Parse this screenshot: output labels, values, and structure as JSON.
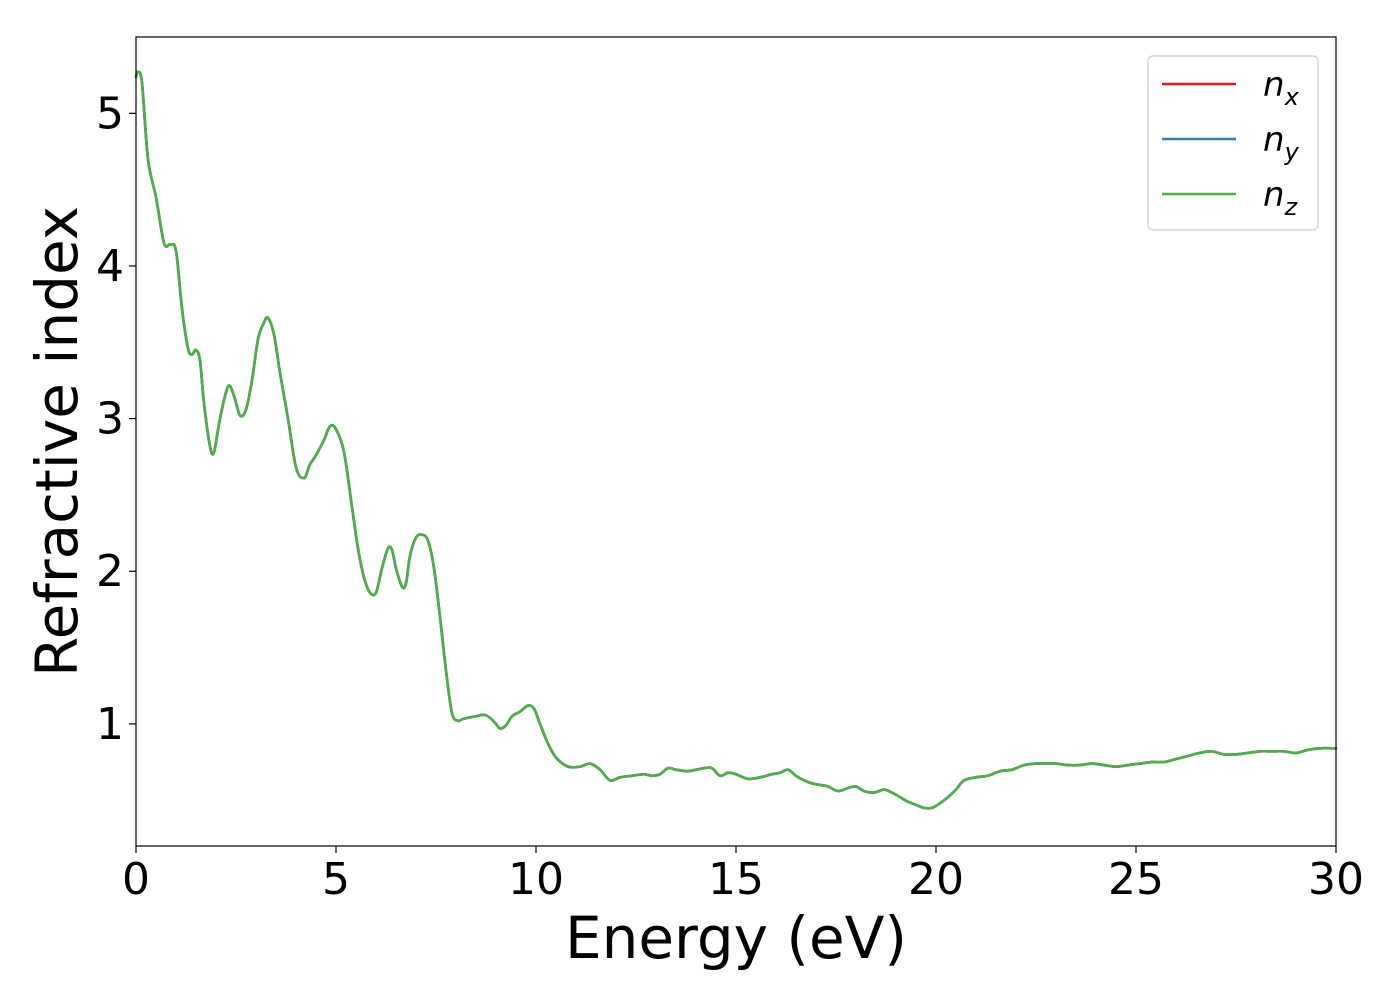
{
  "chart_data": {
    "type": "line",
    "title": "",
    "xlabel": "Energy (eV)",
    "ylabel": "Refractive index",
    "xlim": [
      0,
      30
    ],
    "ylim": [
      0.2,
      5.5
    ],
    "xticks": [
      0,
      5,
      10,
      15,
      20,
      25,
      30
    ],
    "xtick_labels": [
      "0",
      "5",
      "10",
      "15",
      "20",
      "25",
      "30"
    ],
    "yticks": [
      1,
      2,
      3,
      4,
      5
    ],
    "ytick_labels": [
      "1",
      "2",
      "3",
      "4",
      "5"
    ],
    "grid": false,
    "legend_position": "top-right",
    "series": [
      {
        "name": "n_x",
        "legend_base": "n",
        "legend_sub": "x",
        "color": "#e31a1c",
        "x": [
          0,
          0.05,
          0.15,
          0.3,
          0.5,
          0.7,
          0.85,
          1.0,
          1.15,
          1.3,
          1.4,
          1.5,
          1.6,
          1.7,
          1.85,
          1.95,
          2.1,
          2.3,
          2.45,
          2.6,
          2.75,
          2.9,
          3.05,
          3.2,
          3.3,
          3.45,
          3.6,
          3.8,
          4.0,
          4.2,
          4.35,
          4.5,
          4.7,
          4.85,
          5.0,
          5.2,
          5.4,
          5.55,
          5.7,
          5.85,
          6.0,
          6.15,
          6.3,
          6.4,
          6.5,
          6.65,
          6.75,
          6.85,
          7.0,
          7.15,
          7.3,
          7.45,
          7.6,
          7.75,
          7.9,
          8.05,
          8.15,
          8.3,
          8.5,
          8.7,
          8.85,
          9.0,
          9.1,
          9.25,
          9.4,
          9.6,
          9.8,
          9.95,
          10.1,
          10.3,
          10.5,
          10.8,
          11.1,
          11.35,
          11.6,
          11.85,
          12.1,
          12.4,
          12.7,
          12.9,
          13.1,
          13.3,
          13.5,
          13.8,
          14.0,
          14.2,
          14.4,
          14.6,
          14.8,
          15.0,
          15.3,
          15.6,
          15.9,
          16.1,
          16.3,
          16.5,
          16.7,
          16.9,
          17.1,
          17.3,
          17.55,
          17.8,
          18.0,
          18.2,
          18.45,
          18.7,
          18.9,
          19.1,
          19.3,
          19.5,
          19.7,
          19.9,
          20.1,
          20.3,
          20.5,
          20.7,
          21.0,
          21.3,
          21.6,
          21.9,
          22.2,
          22.5,
          22.8,
          23.0,
          23.3,
          23.6,
          23.9,
          24.2,
          24.5,
          24.8,
          25.1,
          25.4,
          25.7,
          26.0,
          26.3,
          26.6,
          26.9,
          27.2,
          27.5,
          27.8,
          28.1,
          28.4,
          28.7,
          29.0,
          29.3,
          29.6,
          30.0
        ],
        "y": [
          5.24,
          5.27,
          5.2,
          4.7,
          4.45,
          4.15,
          4.14,
          4.1,
          3.72,
          3.46,
          3.42,
          3.45,
          3.38,
          3.1,
          2.82,
          2.78,
          3.0,
          3.21,
          3.15,
          3.02,
          3.06,
          3.25,
          3.52,
          3.63,
          3.66,
          3.55,
          3.3,
          3.0,
          2.68,
          2.61,
          2.7,
          2.76,
          2.86,
          2.95,
          2.93,
          2.78,
          2.42,
          2.15,
          1.96,
          1.86,
          1.86,
          2.02,
          2.15,
          2.14,
          2.02,
          1.9,
          1.92,
          2.1,
          2.22,
          2.24,
          2.2,
          2.02,
          1.7,
          1.35,
          1.07,
          1.02,
          1.03,
          1.04,
          1.05,
          1.06,
          1.04,
          1.0,
          0.97,
          0.99,
          1.05,
          1.08,
          1.12,
          1.1,
          1.0,
          0.87,
          0.78,
          0.72,
          0.72,
          0.74,
          0.7,
          0.63,
          0.65,
          0.66,
          0.67,
          0.66,
          0.67,
          0.71,
          0.7,
          0.69,
          0.7,
          0.71,
          0.71,
          0.66,
          0.68,
          0.67,
          0.64,
          0.65,
          0.67,
          0.68,
          0.7,
          0.66,
          0.63,
          0.61,
          0.6,
          0.59,
          0.56,
          0.58,
          0.59,
          0.56,
          0.55,
          0.57,
          0.55,
          0.52,
          0.49,
          0.47,
          0.45,
          0.45,
          0.48,
          0.52,
          0.57,
          0.63,
          0.65,
          0.66,
          0.69,
          0.7,
          0.73,
          0.74,
          0.74,
          0.74,
          0.73,
          0.73,
          0.74,
          0.73,
          0.72,
          0.73,
          0.74,
          0.75,
          0.75,
          0.77,
          0.79,
          0.81,
          0.82,
          0.8,
          0.8,
          0.81,
          0.82,
          0.82,
          0.82,
          0.81,
          0.83,
          0.84,
          0.84
        ]
      },
      {
        "name": "n_y",
        "legend_base": "n",
        "legend_sub": "y",
        "color": "#377eb8",
        "x": [
          0,
          0.05,
          0.15,
          0.3,
          0.5,
          0.7,
          0.85,
          1.0,
          1.15,
          1.3,
          1.4,
          1.5,
          1.6,
          1.7,
          1.85,
          1.95,
          2.1,
          2.3,
          2.45,
          2.6,
          2.75,
          2.9,
          3.05,
          3.2,
          3.3,
          3.45,
          3.6,
          3.8,
          4.0,
          4.2,
          4.35,
          4.5,
          4.7,
          4.85,
          5.0,
          5.2,
          5.4,
          5.55,
          5.7,
          5.85,
          6.0,
          6.15,
          6.3,
          6.4,
          6.5,
          6.65,
          6.75,
          6.85,
          7.0,
          7.15,
          7.3,
          7.45,
          7.6,
          7.75,
          7.9,
          8.05,
          8.15,
          8.3,
          8.5,
          8.7,
          8.85,
          9.0,
          9.1,
          9.25,
          9.4,
          9.6,
          9.8,
          9.95,
          10.1,
          10.3,
          10.5,
          10.8,
          11.1,
          11.35,
          11.6,
          11.85,
          12.1,
          12.4,
          12.7,
          12.9,
          13.1,
          13.3,
          13.5,
          13.8,
          14.0,
          14.2,
          14.4,
          14.6,
          14.8,
          15.0,
          15.3,
          15.6,
          15.9,
          16.1,
          16.3,
          16.5,
          16.7,
          16.9,
          17.1,
          17.3,
          17.55,
          17.8,
          18.0,
          18.2,
          18.45,
          18.7,
          18.9,
          19.1,
          19.3,
          19.5,
          19.7,
          19.9,
          20.1,
          20.3,
          20.5,
          20.7,
          21.0,
          21.3,
          21.6,
          21.9,
          22.2,
          22.5,
          22.8,
          23.0,
          23.3,
          23.6,
          23.9,
          24.2,
          24.5,
          24.8,
          25.1,
          25.4,
          25.7,
          26.0,
          26.3,
          26.6,
          26.9,
          27.2,
          27.5,
          27.8,
          28.1,
          28.4,
          28.7,
          29.0,
          29.3,
          29.6,
          30.0
        ],
        "y": [
          5.24,
          5.27,
          5.2,
          4.7,
          4.45,
          4.15,
          4.14,
          4.1,
          3.72,
          3.46,
          3.42,
          3.45,
          3.38,
          3.1,
          2.82,
          2.78,
          3.0,
          3.21,
          3.15,
          3.02,
          3.06,
          3.25,
          3.52,
          3.63,
          3.66,
          3.55,
          3.3,
          3.0,
          2.68,
          2.61,
          2.7,
          2.76,
          2.86,
          2.95,
          2.93,
          2.78,
          2.42,
          2.15,
          1.96,
          1.86,
          1.86,
          2.02,
          2.15,
          2.14,
          2.02,
          1.9,
          1.92,
          2.1,
          2.22,
          2.24,
          2.2,
          2.02,
          1.7,
          1.35,
          1.07,
          1.02,
          1.03,
          1.04,
          1.05,
          1.06,
          1.04,
          1.0,
          0.97,
          0.99,
          1.05,
          1.08,
          1.12,
          1.1,
          1.0,
          0.87,
          0.78,
          0.72,
          0.72,
          0.74,
          0.7,
          0.63,
          0.65,
          0.66,
          0.67,
          0.66,
          0.67,
          0.71,
          0.7,
          0.69,
          0.7,
          0.71,
          0.71,
          0.66,
          0.68,
          0.67,
          0.64,
          0.65,
          0.67,
          0.68,
          0.7,
          0.66,
          0.63,
          0.61,
          0.6,
          0.59,
          0.56,
          0.58,
          0.59,
          0.56,
          0.55,
          0.57,
          0.55,
          0.52,
          0.49,
          0.47,
          0.45,
          0.45,
          0.48,
          0.52,
          0.57,
          0.63,
          0.65,
          0.66,
          0.69,
          0.7,
          0.73,
          0.74,
          0.74,
          0.74,
          0.73,
          0.73,
          0.74,
          0.73,
          0.72,
          0.73,
          0.74,
          0.75,
          0.75,
          0.77,
          0.79,
          0.81,
          0.82,
          0.8,
          0.8,
          0.81,
          0.82,
          0.82,
          0.82,
          0.81,
          0.83,
          0.84,
          0.84
        ]
      },
      {
        "name": "n_z",
        "legend_base": "n",
        "legend_sub": "z",
        "color": "#4daf4a",
        "x": [
          0,
          0.05,
          0.15,
          0.3,
          0.5,
          0.7,
          0.85,
          1.0,
          1.15,
          1.3,
          1.4,
          1.5,
          1.6,
          1.7,
          1.85,
          1.95,
          2.1,
          2.3,
          2.45,
          2.6,
          2.75,
          2.9,
          3.05,
          3.2,
          3.3,
          3.45,
          3.6,
          3.8,
          4.0,
          4.2,
          4.35,
          4.5,
          4.7,
          4.85,
          5.0,
          5.2,
          5.4,
          5.55,
          5.7,
          5.85,
          6.0,
          6.15,
          6.3,
          6.4,
          6.5,
          6.65,
          6.75,
          6.85,
          7.0,
          7.15,
          7.3,
          7.45,
          7.6,
          7.75,
          7.9,
          8.05,
          8.15,
          8.3,
          8.5,
          8.7,
          8.85,
          9.0,
          9.1,
          9.25,
          9.4,
          9.6,
          9.8,
          9.95,
          10.1,
          10.3,
          10.5,
          10.8,
          11.1,
          11.35,
          11.6,
          11.85,
          12.1,
          12.4,
          12.7,
          12.9,
          13.1,
          13.3,
          13.5,
          13.8,
          14.0,
          14.2,
          14.4,
          14.6,
          14.8,
          15.0,
          15.3,
          15.6,
          15.9,
          16.1,
          16.3,
          16.5,
          16.7,
          16.9,
          17.1,
          17.3,
          17.55,
          17.8,
          18.0,
          18.2,
          18.45,
          18.7,
          18.9,
          19.1,
          19.3,
          19.5,
          19.7,
          19.9,
          20.1,
          20.3,
          20.5,
          20.7,
          21.0,
          21.3,
          21.6,
          21.9,
          22.2,
          22.5,
          22.8,
          23.0,
          23.3,
          23.6,
          23.9,
          24.2,
          24.5,
          24.8,
          25.1,
          25.4,
          25.7,
          26.0,
          26.3,
          26.6,
          26.9,
          27.2,
          27.5,
          27.8,
          28.1,
          28.4,
          28.7,
          29.0,
          29.3,
          29.6,
          30.0
        ],
        "y": [
          5.24,
          5.27,
          5.2,
          4.7,
          4.45,
          4.15,
          4.14,
          4.1,
          3.72,
          3.46,
          3.42,
          3.45,
          3.38,
          3.1,
          2.82,
          2.78,
          3.0,
          3.21,
          3.15,
          3.02,
          3.06,
          3.25,
          3.52,
          3.63,
          3.66,
          3.55,
          3.3,
          3.0,
          2.68,
          2.61,
          2.7,
          2.76,
          2.86,
          2.95,
          2.93,
          2.78,
          2.42,
          2.15,
          1.96,
          1.86,
          1.86,
          2.02,
          2.15,
          2.14,
          2.02,
          1.9,
          1.92,
          2.1,
          2.22,
          2.24,
          2.2,
          2.02,
          1.7,
          1.35,
          1.07,
          1.02,
          1.03,
          1.04,
          1.05,
          1.06,
          1.04,
          1.0,
          0.97,
          0.99,
          1.05,
          1.08,
          1.12,
          1.1,
          1.0,
          0.87,
          0.78,
          0.72,
          0.72,
          0.74,
          0.7,
          0.63,
          0.65,
          0.66,
          0.67,
          0.66,
          0.67,
          0.71,
          0.7,
          0.69,
          0.7,
          0.71,
          0.71,
          0.66,
          0.68,
          0.67,
          0.64,
          0.65,
          0.67,
          0.68,
          0.7,
          0.66,
          0.63,
          0.61,
          0.6,
          0.59,
          0.56,
          0.58,
          0.59,
          0.56,
          0.55,
          0.57,
          0.55,
          0.52,
          0.49,
          0.47,
          0.45,
          0.45,
          0.48,
          0.52,
          0.57,
          0.63,
          0.65,
          0.66,
          0.69,
          0.7,
          0.73,
          0.74,
          0.74,
          0.74,
          0.73,
          0.73,
          0.74,
          0.73,
          0.72,
          0.73,
          0.74,
          0.75,
          0.75,
          0.77,
          0.79,
          0.81,
          0.82,
          0.8,
          0.8,
          0.81,
          0.82,
          0.82,
          0.82,
          0.81,
          0.83,
          0.84,
          0.84
        ]
      }
    ]
  }
}
